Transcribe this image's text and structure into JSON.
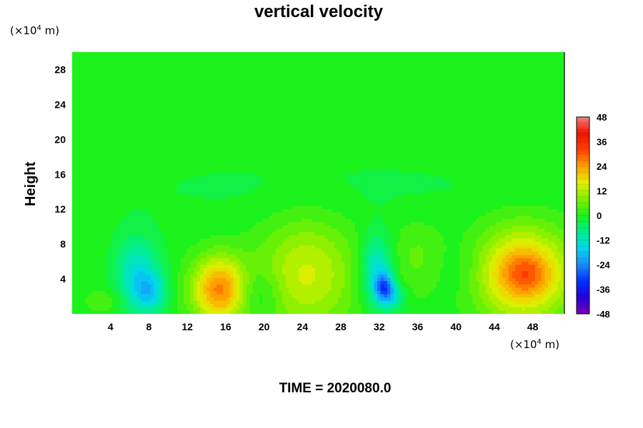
{
  "chart_data": {
    "type": "heatmap",
    "title": "vertical velocity",
    "ylabel": "Height",
    "x_unit": {
      "prefix": "(×10",
      "exponent": "4",
      "suffix": " m)"
    },
    "y_unit": {
      "prefix": "(×10",
      "exponent": "4",
      "suffix": " m)"
    },
    "footer": "TIME = 2020080.0",
    "xlim": [
      0,
      51.3
    ],
    "ylim": [
      0,
      30
    ],
    "xticks": [
      4,
      8,
      12,
      16,
      20,
      24,
      28,
      32,
      36,
      40,
      44,
      48
    ],
    "yticks": [
      4,
      8,
      12,
      16,
      20,
      24,
      28
    ],
    "colorbar": {
      "min": -48,
      "max": 48,
      "ticks": [
        48,
        36,
        24,
        12,
        0,
        -12,
        -24,
        -36,
        -48
      ],
      "colors": [
        {
          "value": -48,
          "color": "#7a00b8"
        },
        {
          "value": -40,
          "color": "#2400d8"
        },
        {
          "value": -32,
          "color": "#0030ff"
        },
        {
          "value": -24,
          "color": "#1c8cff"
        },
        {
          "value": -16,
          "color": "#00d8ee"
        },
        {
          "value": -8,
          "color": "#00ee8c"
        },
        {
          "value": 0,
          "color": "#1cf21c"
        },
        {
          "value": 8,
          "color": "#80f000"
        },
        {
          "value": 16,
          "color": "#e4f000"
        },
        {
          "value": 24,
          "color": "#ffa000"
        },
        {
          "value": 32,
          "color": "#ff4000"
        },
        {
          "value": 40,
          "color": "#f01400"
        },
        {
          "value": 48,
          "color": "#f08080"
        }
      ]
    },
    "features": [
      {
        "x": 6.8,
        "y": 4.5,
        "sx": 1.6,
        "sy": 3.0,
        "value": -14
      },
      {
        "x": 8.2,
        "y": 2.5,
        "sx": 1.2,
        "sy": 1.6,
        "value": -12
      },
      {
        "x": 3.5,
        "y": 1.5,
        "sx": 1.5,
        "sy": 1.0,
        "value": 4
      },
      {
        "x": 15.3,
        "y": 2.8,
        "sx": 2.0,
        "sy": 2.6,
        "value": 26
      },
      {
        "x": 19.5,
        "y": 2.4,
        "sx": 1.5,
        "sy": 1.8,
        "value": -6
      },
      {
        "x": 24.5,
        "y": 4.5,
        "sx": 3.6,
        "sy": 4.5,
        "value": 14
      },
      {
        "x": 31.7,
        "y": 5.0,
        "sx": 1.2,
        "sy": 2.8,
        "value": -15
      },
      {
        "x": 32.5,
        "y": 3.0,
        "sx": 0.7,
        "sy": 1.2,
        "value": -22
      },
      {
        "x": 33.6,
        "y": 1.9,
        "sx": 0.9,
        "sy": 1.1,
        "value": -10
      },
      {
        "x": 36.0,
        "y": 6.5,
        "sx": 2.0,
        "sy": 3.0,
        "value": 5
      },
      {
        "x": 40.5,
        "y": 5.0,
        "sx": 2.0,
        "sy": 2.5,
        "value": -3
      },
      {
        "x": 47.0,
        "y": 4.6,
        "sx": 3.5,
        "sy": 3.7,
        "value": 24
      },
      {
        "x": 47.3,
        "y": 4.6,
        "sx": 1.6,
        "sy": 1.6,
        "value": 8
      },
      {
        "x": 26.0,
        "y": 14.5,
        "sx": 20.0,
        "sy": 3.0,
        "value": -2
      }
    ]
  }
}
